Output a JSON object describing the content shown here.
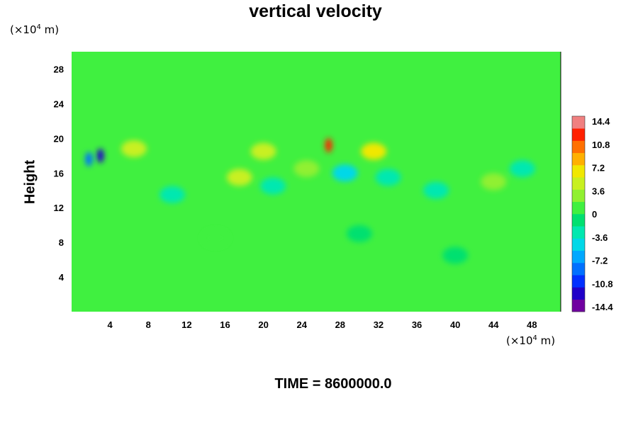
{
  "chart_data": {
    "type": "heatmap",
    "title": "vertical velocity",
    "ylabel": "Height",
    "x_unit": {
      "pre": "(×10",
      "exp": "4",
      "post": " m)"
    },
    "y_unit": {
      "pre": "(×10",
      "exp": "4",
      "post": " m)"
    },
    "x_ticks": [
      4,
      8,
      12,
      16,
      20,
      24,
      28,
      32,
      36,
      40,
      44,
      48
    ],
    "y_ticks": [
      4,
      8,
      12,
      16,
      20,
      24,
      28
    ],
    "xlim": [
      0,
      51
    ],
    "ylim": [
      0,
      30
    ],
    "colorbar": {
      "min": -14.4,
      "max": 14.4,
      "levels": 16,
      "labels": [
        "14.4",
        "10.8",
        "7.2",
        "3.6",
        "0",
        "-3.6",
        "-7.2",
        "-10.8",
        "-14.4"
      ],
      "colors": [
        "#7000a0",
        "#2000c8",
        "#0030ff",
        "#0070ff",
        "#00a8ff",
        "#00d8e8",
        "#00e8b0",
        "#00e070",
        "#40f040",
        "#90f030",
        "#c8f020",
        "#f0e800",
        "#ffb000",
        "#ff7000",
        "#ff2000",
        "#f08080"
      ]
    },
    "background_color": "#40f040",
    "features": [
      {
        "x": 3.0,
        "y": 18.0,
        "value": -12.0
      },
      {
        "x": 1.8,
        "y": 17.6,
        "value": -8.0
      },
      {
        "x": 26.8,
        "y": 19.2,
        "value": 11.0
      },
      {
        "x": 6.5,
        "y": 18.8,
        "value": 5.0
      },
      {
        "x": 31.5,
        "y": 18.5,
        "value": 6.0
      },
      {
        "x": 20.0,
        "y": 18.5,
        "value": 4.0
      },
      {
        "x": 17.5,
        "y": 15.5,
        "value": 4.0
      },
      {
        "x": 24.5,
        "y": 16.5,
        "value": 3.5
      },
      {
        "x": 28.5,
        "y": 16.0,
        "value": -4.0
      },
      {
        "x": 33.0,
        "y": 15.5,
        "value": -3.5
      },
      {
        "x": 10.5,
        "y": 13.5,
        "value": -3.0
      },
      {
        "x": 21.0,
        "y": 14.5,
        "value": -2.5
      },
      {
        "x": 38.0,
        "y": 14.0,
        "value": -3.0
      },
      {
        "x": 44.0,
        "y": 15.0,
        "value": 3.0
      },
      {
        "x": 47.0,
        "y": 16.5,
        "value": -3.0
      },
      {
        "x": 30.0,
        "y": 9.0,
        "value": -1.5
      },
      {
        "x": 15.0,
        "y": 8.5,
        "value": 1.5
      },
      {
        "x": 40.0,
        "y": 6.5,
        "value": -1.5
      }
    ]
  },
  "footer": {
    "time_label": "TIME = 8600000.0"
  }
}
